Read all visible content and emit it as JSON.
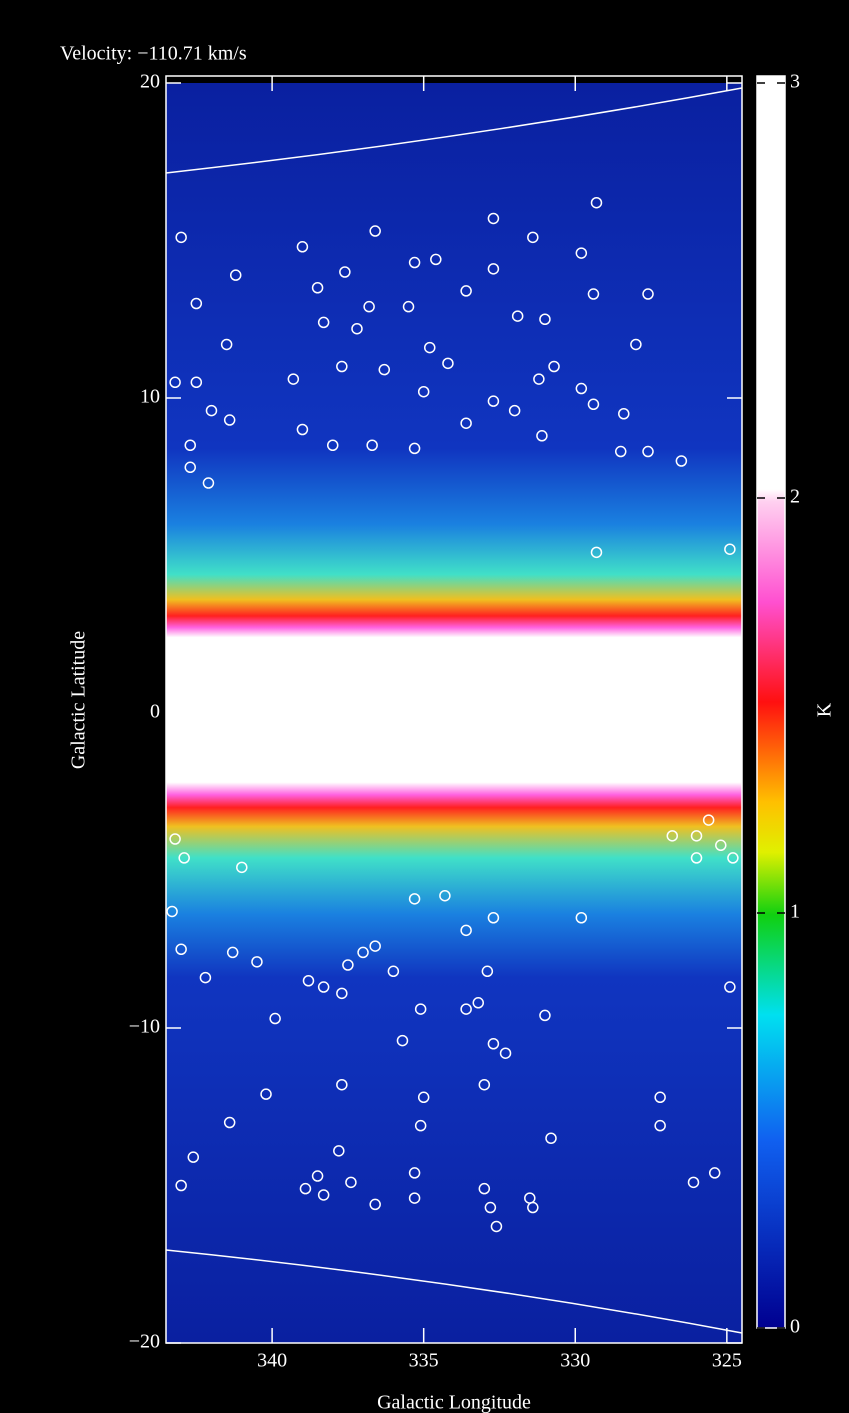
{
  "chart_data": {
    "type": "scatter",
    "title": "Velocity: −110.71 km/s",
    "xlabel": "Galactic Longitude",
    "ylabel": "Galactic Latitude",
    "xlim": [
      343.5,
      324.5
    ],
    "ylim": [
      -20,
      20
    ],
    "xticks": [
      340,
      335,
      330,
      325
    ],
    "yticks": [
      {
        "value": -20,
        "label": "−20"
      },
      {
        "value": -10,
        "label": "−10"
      },
      0,
      10,
      20
    ],
    "colorbar_label": "K",
    "colorbar_lim": [
      0,
      3
    ],
    "colorbar_ticks": [
      0,
      1,
      2,
      3
    ],
    "marker_color": "#ffffff",
    "x": [
      343.0,
      342.5,
      341.2,
      341.5,
      343.2,
      342.5,
      342.0,
      341.4,
      342.7,
      342.7,
      342.1,
      339.0,
      339.3,
      339.0,
      338.5,
      337.6,
      338.3,
      337.2,
      336.6,
      336.8,
      335.5,
      335.3,
      334.6,
      334.8,
      334.2,
      335.0,
      333.6,
      332.7,
      332.7,
      331.4,
      331.9,
      331.0,
      330.7,
      331.2,
      329.8,
      329.3,
      329.4,
      327.6,
      328.0,
      329.8,
      329.4,
      328.4,
      328.5,
      327.6,
      326.5,
      332.7,
      332.0,
      333.6,
      331.1,
      336.3,
      337.7,
      338.0,
      336.7,
      335.3,
      324.9,
      329.3,
      343.2,
      342.9,
      343.3,
      343.0,
      342.2,
      341.3,
      340.5,
      341.0,
      339.9,
      340.2,
      341.4,
      342.6,
      343.0,
      338.8,
      338.3,
      337.7,
      337.7,
      337.8,
      338.5,
      338.9,
      338.3,
      337.4,
      336.6,
      335.7,
      335.1,
      335.0,
      335.1,
      335.3,
      335.3,
      333.6,
      333.2,
      332.7,
      332.3,
      333.0,
      333.0,
      332.8,
      332.6,
      331.5,
      331.4,
      330.8,
      331.0,
      329.8,
      327.2,
      327.2,
      326.1,
      325.4,
      324.9,
      326.8,
      326.0,
      326.0,
      325.6,
      325.2,
      324.8,
      332.9,
      332.7,
      333.6,
      334.3,
      335.3,
      336.0,
      336.6,
      337.0,
      337.5
    ],
    "y": [
      15.1,
      13.0,
      13.9,
      11.7,
      10.5,
      10.5,
      9.6,
      9.3,
      8.5,
      7.8,
      7.3,
      14.8,
      10.6,
      9.0,
      13.5,
      14.0,
      12.4,
      12.2,
      15.3,
      12.9,
      12.9,
      14.3,
      14.4,
      11.6,
      11.1,
      10.2,
      13.4,
      14.1,
      15.7,
      15.1,
      12.6,
      12.5,
      11.0,
      10.6,
      14.6,
      16.2,
      13.3,
      13.3,
      11.7,
      10.3,
      9.8,
      9.5,
      8.3,
      8.3,
      8.0,
      9.9,
      9.6,
      9.2,
      8.8,
      10.9,
      11.0,
      8.5,
      8.5,
      8.4,
      5.2,
      5.1,
      -4.0,
      -4.6,
      -6.3,
      -7.5,
      -8.4,
      -7.6,
      -7.9,
      -4.9,
      -9.7,
      -12.1,
      -13.0,
      -14.1,
      -15.0,
      -8.5,
      -8.7,
      -8.9,
      -11.8,
      -13.9,
      -14.7,
      -15.1,
      -15.3,
      -14.9,
      -15.6,
      -10.4,
      -9.4,
      -12.2,
      -13.1,
      -14.6,
      -15.4,
      -9.4,
      -9.2,
      -10.5,
      -10.8,
      -11.8,
      -15.1,
      -15.7,
      -16.3,
      -15.4,
      -15.7,
      -13.5,
      -9.6,
      -6.5,
      -12.2,
      -13.1,
      -14.9,
      -14.6,
      -8.7,
      -3.9,
      -3.9,
      -4.6,
      -3.4,
      -4.2,
      -4.6,
      -8.2,
      -6.5,
      -6.9,
      -5.8,
      -5.9,
      -8.2,
      -7.4,
      -7.6,
      -8.0
    ]
  }
}
